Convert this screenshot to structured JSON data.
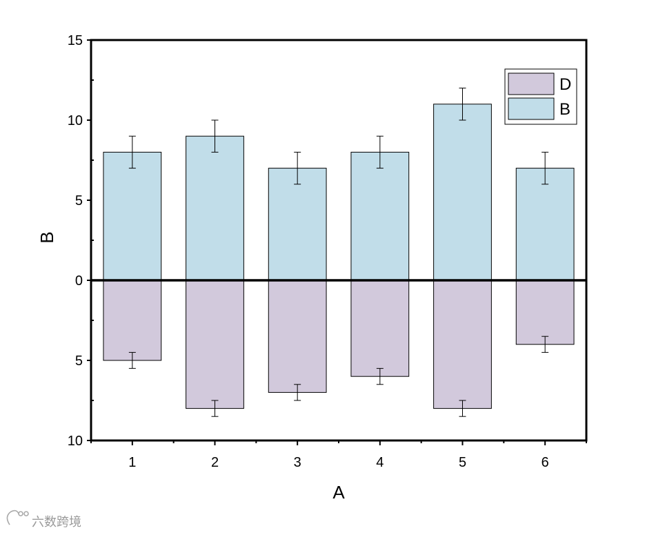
{
  "chart_data": {
    "type": "bar",
    "categories": [
      "1",
      "2",
      "3",
      "4",
      "5",
      "6"
    ],
    "series": [
      {
        "name": "B",
        "color": "#c1dde9",
        "direction": "up",
        "values": [
          8,
          9,
          7,
          8,
          11,
          7
        ],
        "errors": [
          1,
          1,
          1,
          1,
          1,
          1
        ]
      },
      {
        "name": "D",
        "color": "#d2c9dc",
        "direction": "down",
        "values": [
          5,
          8,
          7,
          6,
          8,
          4
        ],
        "errors": [
          0.5,
          0.5,
          0.5,
          0.5,
          0.5,
          0.5
        ]
      }
    ],
    "xlabel": "A",
    "ylabel": "B",
    "ylim": [
      -10,
      15
    ],
    "y_ticks": [
      {
        "value": 15,
        "label": "15"
      },
      {
        "value": 10,
        "label": "10"
      },
      {
        "value": 5,
        "label": "5"
      },
      {
        "value": 0,
        "label": "0"
      },
      {
        "value": -5,
        "label": "5"
      },
      {
        "value": -10,
        "label": "10"
      }
    ],
    "grid": false,
    "legend": {
      "position": "top-right",
      "order": [
        "D",
        "B"
      ]
    }
  },
  "watermark": "六数跨境"
}
